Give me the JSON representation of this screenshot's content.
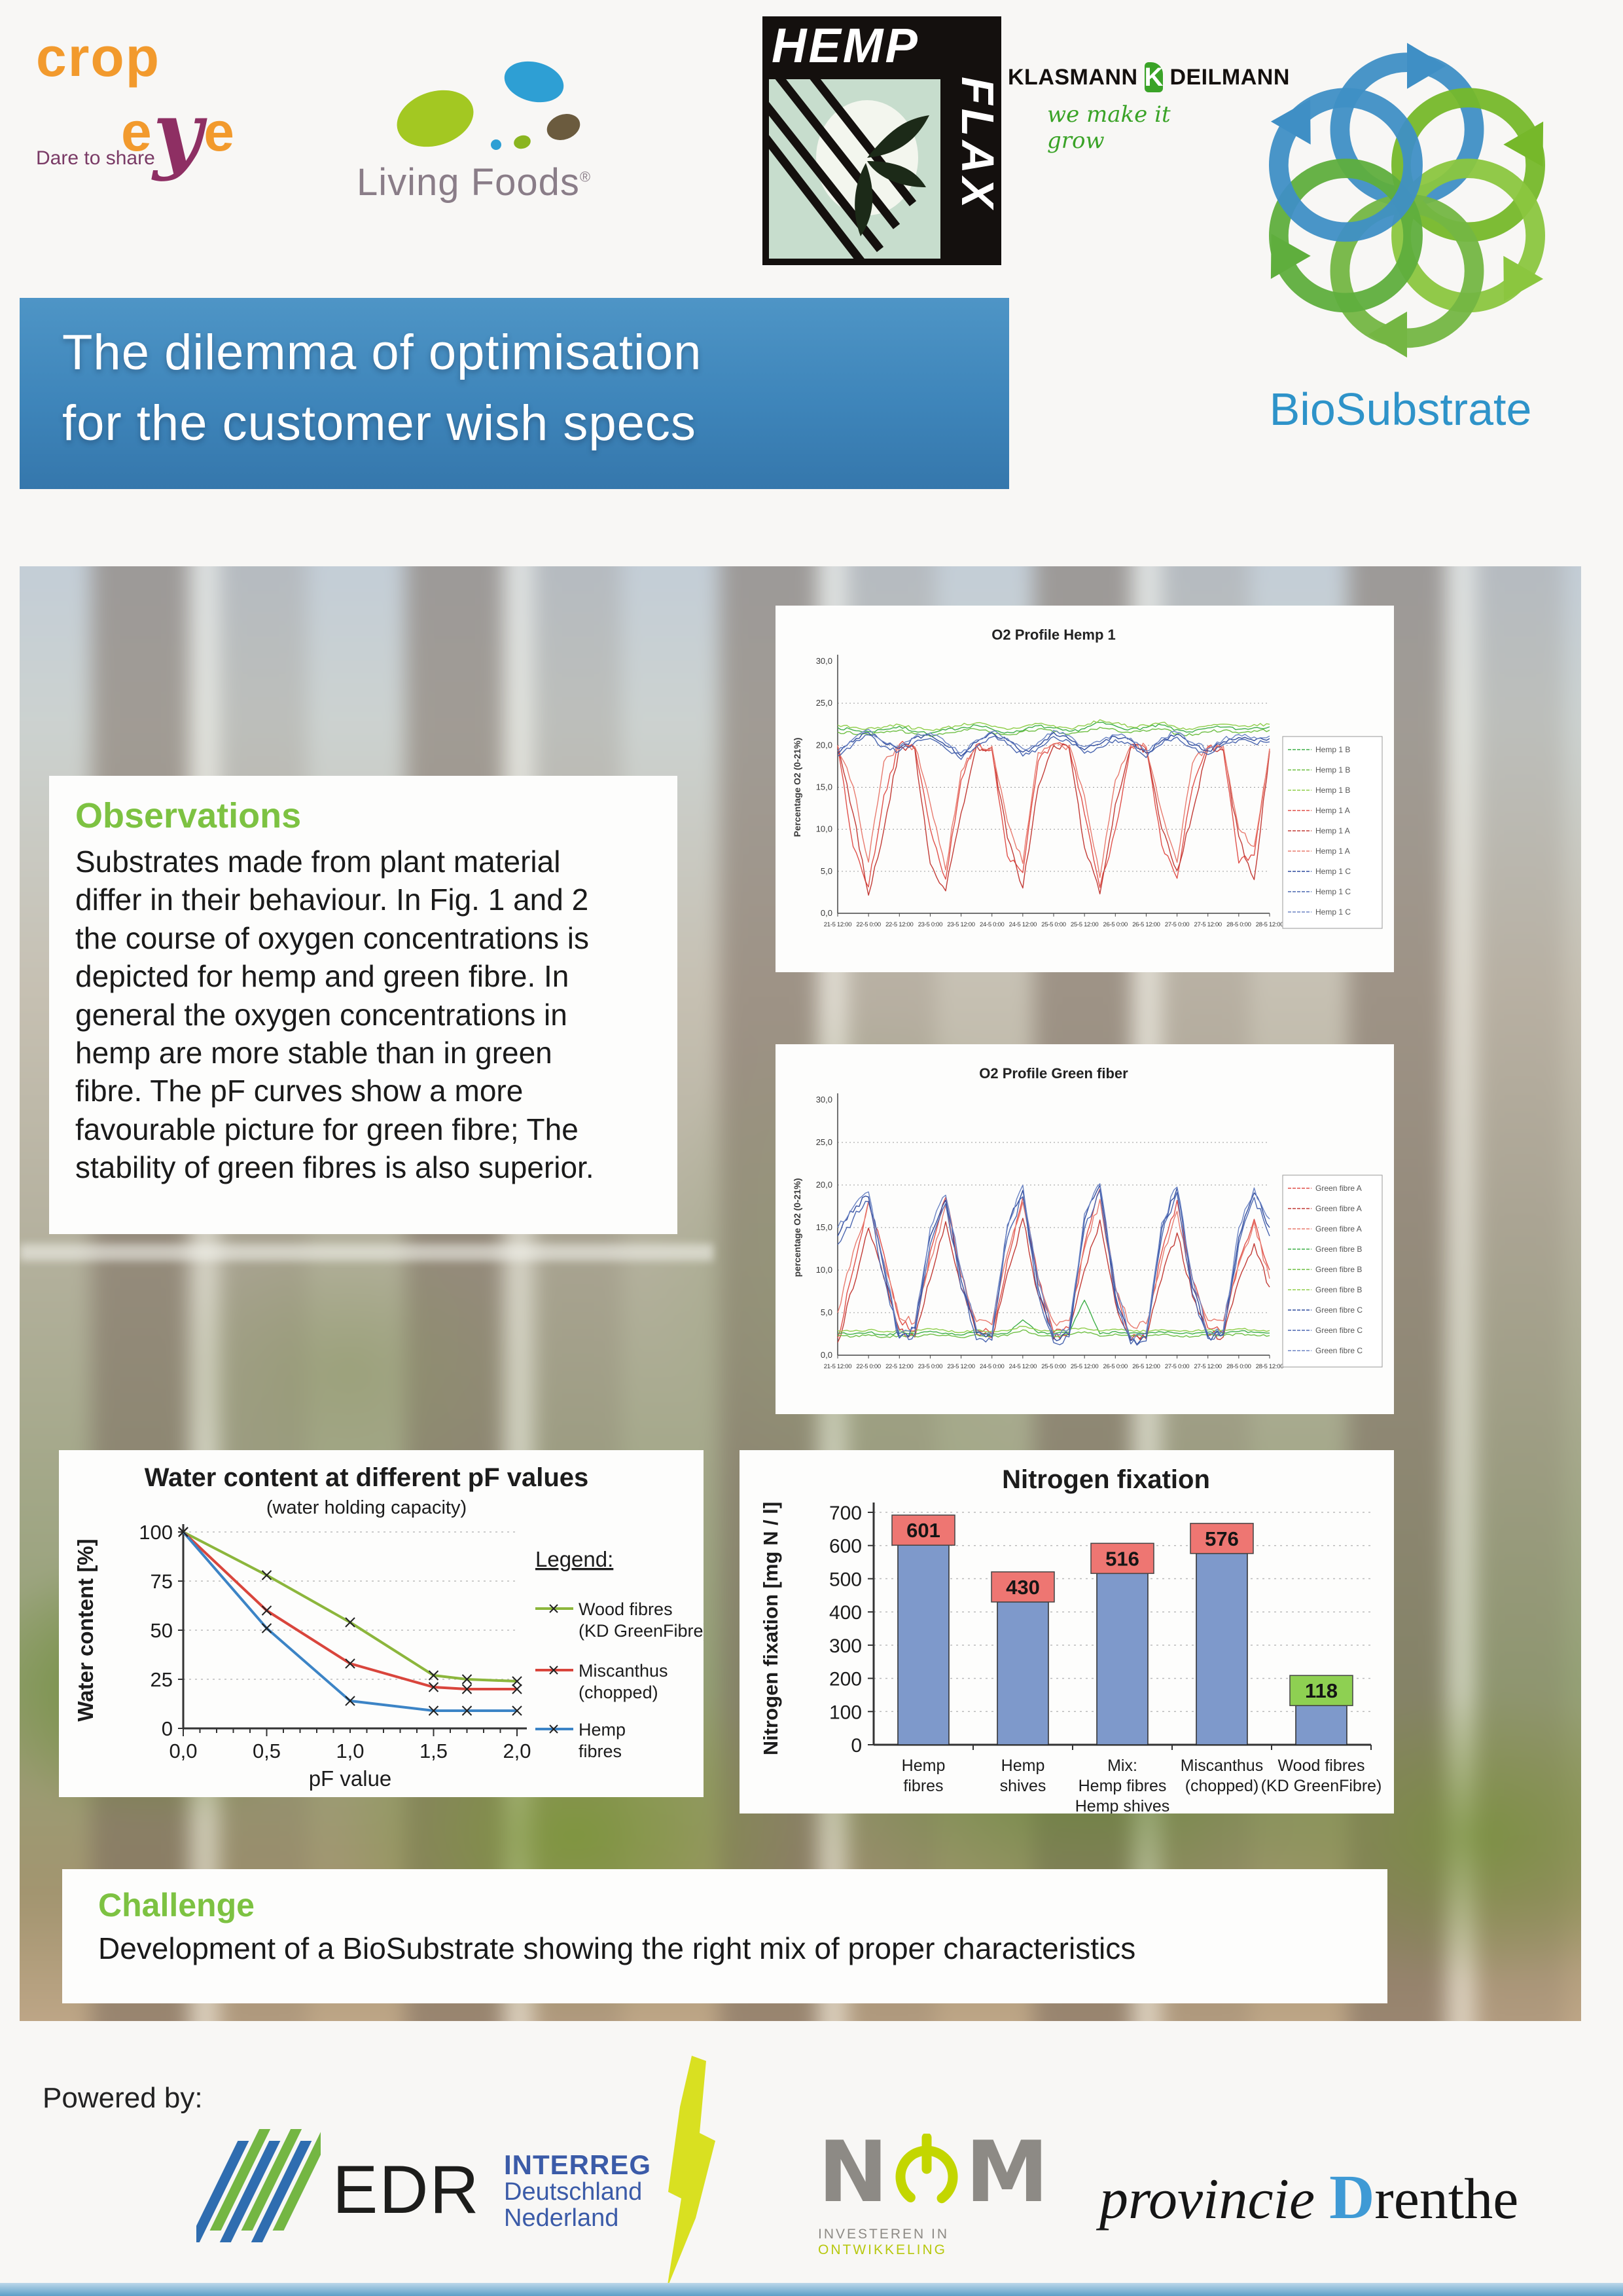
{
  "colors": {
    "banner_blue": "#3e85ba",
    "heading_green": "#7dc242",
    "biosubstrate_blue": "#2e93c9",
    "bar_blue": "#7e99cb",
    "label_red": "#ee7672",
    "label_green": "#8ed052"
  },
  "header": {
    "logos": {
      "cropeye": {
        "tagline": "Dare to share",
        "word1": "crop",
        "e1": "e",
        "y": "y",
        "e2": "e"
      },
      "livingfoods": {
        "name": "Living Foods",
        "reg": "®"
      },
      "hempflax": {
        "line1": "HEMP",
        "line2": "FLAX"
      },
      "klasmann": {
        "left": "KLASMANN",
        "k": "K",
        "right": "DEILMANN",
        "tagline": "we make it grow"
      },
      "biosubstrate": {
        "name": "BioSubstrate"
      }
    },
    "banner": {
      "line1": "The dilemma of optimisation",
      "line2": "for the customer wish specs"
    }
  },
  "observations": {
    "heading": "Observations",
    "body": "Substrates made from plant material differ in their behaviour. In Fig. 1 and 2 the course of oxygen concentrations is depicted for hemp and green fibre. In general the oxygen concentrations in hemp are more stable than in green fibre. The pF curves show a more favourable picture for green fibre; The stability of green fibres is also superior."
  },
  "challenge": {
    "heading": "Challenge",
    "body": "Development of a BioSubstrate showing the right mix of proper characteristics"
  },
  "footer": {
    "powered_by": "Powered by:",
    "edr": "EDR",
    "interreg": {
      "line1": "INTERREG",
      "line2": "Deutschland",
      "line3": "Nederland"
    },
    "nom": {
      "n": "N",
      "m": "M",
      "tagline_gray": "INVESTEREN IN ",
      "tagline_green": "ONTWIKKELING"
    },
    "drenthe": {
      "word1": "provincie ",
      "d": "D",
      "rest": "renthe"
    }
  },
  "chart_data": [
    {
      "type": "line",
      "title": "O2 Profile Hemp 1",
      "ylabel": "Percentage O2 (0-21%)",
      "ylim": [
        0,
        30
      ],
      "ytick_step": 5,
      "yticklabels": [
        "0,0",
        "5,0",
        "10,0",
        "15,0",
        "20,0",
        "25,0",
        "30,0"
      ],
      "grid": true,
      "legend_position": "right",
      "xticklabels": [
        "21-5 12:00",
        "22-5 0:00",
        "22-5 12:00",
        "23-5 0:00",
        "23-5 12:00",
        "24-5 0:00",
        "24-5 12:00",
        "25-5 0:00",
        "25-5 12:00",
        "26-5 0:00",
        "26-5 12:00",
        "27-5 0:00",
        "27-5 12:00",
        "28-5 0:00",
        "28-5 12:00"
      ],
      "series": [
        {
          "name": "Hemp 1 B",
          "color": "#3faf49",
          "jitter": 0.18,
          "values": [
            22.1,
            21.8,
            21.6,
            21.9,
            22.2,
            21.7,
            21.4,
            21.8,
            22.1,
            22.4,
            21.9,
            21.5,
            21.8,
            22.3,
            22.0,
            21.6,
            22.0,
            22.7,
            22.3,
            21.9,
            22.1,
            22.4,
            21.8,
            21.6,
            22.0,
            22.2,
            21.9,
            22.1,
            22.2
          ]
        },
        {
          "name": "Hemp 1 B",
          "color": "#6fbf44",
          "jitter": 0.18,
          "values": [
            21.6,
            21.4,
            21.3,
            21.5,
            21.8,
            21.3,
            21.1,
            21.4,
            21.7,
            21.9,
            21.5,
            21.2,
            21.6,
            21.9,
            21.6,
            21.3,
            21.6,
            22.1,
            21.8,
            21.5,
            21.7,
            21.9,
            21.4,
            21.2,
            21.6,
            21.8,
            21.5,
            21.7,
            21.8
          ]
        },
        {
          "name": "Hemp 1 B",
          "color": "#8fce4a",
          "jitter": 0.18,
          "values": [
            22.4,
            22.1,
            22.0,
            22.2,
            22.5,
            22.0,
            21.8,
            22.1,
            22.4,
            22.7,
            22.2,
            21.9,
            22.2,
            22.6,
            22.3,
            22.0,
            22.3,
            23.0,
            22.6,
            22.2,
            22.4,
            22.7,
            22.1,
            21.9,
            22.3,
            22.5,
            22.2,
            22.4,
            22.5
          ]
        },
        {
          "name": "Hemp 1 A",
          "color": "#e0504a",
          "jitter": 0.45,
          "values": [
            19.9,
            8.0,
            3.2,
            14.0,
            20.1,
            19.8,
            10.0,
            4.1,
            16.0,
            20.0,
            19.5,
            7.0,
            5.0,
            18.0,
            20.0,
            19.8,
            12.0,
            3.0,
            10.0,
            20.0,
            19.6,
            8.0,
            4.2,
            15.0,
            19.8,
            19.5,
            6.0,
            7.0,
            19.5
          ]
        },
        {
          "name": "Hemp 1 A",
          "color": "#c23b36",
          "jitter": 0.45,
          "values": [
            19.8,
            12.0,
            2.1,
            10.0,
            19.8,
            19.5,
            6.0,
            2.6,
            12.0,
            19.8,
            19.6,
            9.0,
            3.1,
            15.0,
            19.9,
            19.7,
            8.0,
            2.2,
            13.0,
            19.8,
            19.5,
            10.0,
            5.1,
            12.0,
            19.6,
            19.4,
            9.0,
            4.0,
            19.3
          ]
        },
        {
          "name": "Hemp 1 A",
          "color": "#e87b6f",
          "jitter": 0.45,
          "values": [
            20.0,
            15.0,
            6.1,
            18.0,
            20.0,
            19.9,
            13.0,
            5.2,
            17.0,
            20.0,
            19.8,
            11.0,
            6.0,
            19.0,
            20.0,
            19.9,
            14.0,
            4.1,
            16.0,
            19.9,
            19.8,
            12.0,
            6.2,
            18.0,
            19.8,
            19.7,
            10.0,
            8.0,
            19.6
          ]
        },
        {
          "name": "Hemp 1 C",
          "color": "#2f4b9e",
          "jitter": 0.28,
          "values": [
            19.0,
            20.5,
            21.6,
            20.2,
            19.6,
            20.8,
            21.2,
            20.0,
            18.8,
            20.3,
            21.4,
            20.6,
            19.2,
            20.0,
            21.5,
            20.8,
            19.5,
            20.2,
            21.0,
            20.5,
            19.0,
            20.6,
            21.3,
            20.0,
            19.3,
            20.4,
            21.0,
            20.6,
            20.8
          ]
        },
        {
          "name": "Hemp 1 C",
          "color": "#4a66b0",
          "jitter": 0.28,
          "values": [
            18.7,
            20.1,
            21.2,
            19.8,
            19.2,
            20.4,
            20.8,
            19.6,
            18.4,
            19.9,
            21.0,
            20.2,
            18.8,
            19.6,
            21.1,
            20.4,
            19.1,
            19.8,
            20.6,
            20.1,
            18.6,
            20.2,
            20.9,
            19.6,
            18.9,
            20.0,
            20.6,
            20.2,
            20.4
          ]
        },
        {
          "name": "Hemp 1 C",
          "color": "#6b84c4",
          "jitter": 0.28,
          "values": [
            19.3,
            20.8,
            21.9,
            20.5,
            19.9,
            21.1,
            21.5,
            20.3,
            19.1,
            20.6,
            21.7,
            20.9,
            19.5,
            20.3,
            21.8,
            21.1,
            19.8,
            20.5,
            21.3,
            20.8,
            19.3,
            20.9,
            21.6,
            20.3,
            19.6,
            20.7,
            21.3,
            20.9,
            21.1
          ]
        }
      ]
    },
    {
      "type": "line",
      "title": "O2 Profile Green fiber",
      "ylabel": "percentage O2 (0-21%)",
      "ylim": [
        0,
        30
      ],
      "ytick_step": 5,
      "yticklabels": [
        "0,0",
        "5,0",
        "10,0",
        "15,0",
        "20,0",
        "25,0",
        "30,0"
      ],
      "grid": true,
      "legend_position": "right",
      "xticklabels": [
        "21-5 12:00",
        "22-5 0:00",
        "22-5 12:00",
        "23-5 0:00",
        "23-5 12:00",
        "24-5 0:00",
        "24-5 12:00",
        "25-5 0:00",
        "25-5 12:00",
        "26-5 0:00",
        "26-5 12:00",
        "27-5 0:00",
        "27-5 12:00",
        "28-5 0:00",
        "28-5 12:00"
      ],
      "series": [
        {
          "name": "Green fibre A",
          "color": "#e0504a",
          "jitter": 0.5,
          "values": [
            2.0,
            10.0,
            18.0,
            12.0,
            4.0,
            3.0,
            12.0,
            18.5,
            10.0,
            3.0,
            2.5,
            11.0,
            18.7,
            9.0,
            2.5,
            3.0,
            13.0,
            19.5,
            8.0,
            2.0,
            2.5,
            12.0,
            18.0,
            9.0,
            3.0,
            2.8,
            11.0,
            16.0,
            10.0
          ]
        },
        {
          "name": "Green fibre A",
          "color": "#c23b36",
          "jitter": 0.5,
          "values": [
            1.5,
            8.0,
            15.0,
            9.0,
            3.0,
            2.0,
            9.0,
            15.5,
            8.0,
            2.5,
            2.0,
            9.5,
            16.0,
            7.0,
            2.0,
            2.5,
            10.0,
            15.8,
            6.0,
            1.8,
            2.0,
            9.0,
            14.5,
            7.0,
            2.5,
            2.2,
            9.0,
            13.0,
            8.0
          ]
        },
        {
          "name": "Green fibre A",
          "color": "#e87b6f",
          "jitter": 0.5,
          "values": [
            5.0,
            12.0,
            17.8,
            11.0,
            4.5,
            4.0,
            11.0,
            17.5,
            9.5,
            4.0,
            3.5,
            12.0,
            18.0,
            8.5,
            3.8,
            4.0,
            12.5,
            18.2,
            7.5,
            3.5,
            3.8,
            11.0,
            17.0,
            8.0,
            4.0,
            4.0,
            10.5,
            15.5,
            9.0
          ]
        },
        {
          "name": "Green fibre B",
          "color": "#3faf49",
          "jitter": 0.12,
          "values": [
            2.6,
            2.5,
            2.7,
            2.4,
            2.6,
            2.5,
            2.8,
            2.6,
            2.4,
            2.7,
            2.5,
            2.6,
            4.2,
            2.6,
            2.5,
            2.7,
            6.5,
            2.5,
            2.8,
            2.6,
            2.5,
            2.7,
            2.6,
            2.5,
            2.7,
            2.6,
            2.8,
            2.7,
            2.6
          ]
        },
        {
          "name": "Green fibre B",
          "color": "#6fbf44",
          "jitter": 0.12,
          "values": [
            2.3,
            2.2,
            2.4,
            2.1,
            2.3,
            2.2,
            2.5,
            2.3,
            2.1,
            2.4,
            2.2,
            2.3,
            3.0,
            2.3,
            2.2,
            2.4,
            2.8,
            2.2,
            2.5,
            2.3,
            2.2,
            2.4,
            2.3,
            2.2,
            2.4,
            2.3,
            2.5,
            2.4,
            2.3
          ]
        },
        {
          "name": "Green fibre B",
          "color": "#8fce4a",
          "jitter": 0.12,
          "values": [
            2.9,
            2.8,
            3.0,
            2.7,
            2.9,
            2.8,
            3.1,
            2.9,
            2.7,
            3.0,
            2.8,
            2.9,
            3.4,
            2.9,
            2.8,
            3.0,
            3.2,
            2.8,
            3.1,
            2.9,
            2.8,
            3.0,
            2.9,
            2.8,
            3.0,
            2.9,
            3.1,
            3.0,
            2.9
          ]
        },
        {
          "name": "Green fibre C",
          "color": "#2f4b9e",
          "jitter": 0.55,
          "values": [
            14.0,
            17.0,
            18.8,
            10.0,
            2.0,
            3.0,
            14.0,
            18.3,
            9.0,
            2.5,
            2.0,
            15.0,
            19.4,
            8.0,
            2.0,
            2.5,
            16.0,
            20.1,
            7.0,
            1.5,
            2.0,
            15.0,
            19.6,
            8.0,
            2.2,
            2.5,
            14.0,
            19.2,
            15.0
          ]
        },
        {
          "name": "Green fibre C",
          "color": "#4a66b0",
          "jitter": 0.55,
          "values": [
            13.0,
            16.0,
            18.0,
            9.0,
            1.8,
            2.5,
            13.0,
            17.8,
            8.0,
            2.0,
            1.8,
            14.0,
            18.8,
            7.0,
            1.6,
            2.0,
            15.0,
            19.5,
            6.5,
            1.3,
            1.8,
            14.0,
            19.0,
            7.0,
            2.0,
            2.2,
            13.0,
            18.5,
            14.0
          ]
        },
        {
          "name": "Green fibre C",
          "color": "#6b84c4",
          "jitter": 0.55,
          "values": [
            15.0,
            17.5,
            19.2,
            11.0,
            2.5,
            3.5,
            15.0,
            18.8,
            10.0,
            3.0,
            2.6,
            15.5,
            19.8,
            9.0,
            2.4,
            3.0,
            16.5,
            20.3,
            8.0,
            2.0,
            2.6,
            15.5,
            19.9,
            9.0,
            2.6,
            3.0,
            15.0,
            19.5,
            16.0
          ]
        }
      ]
    },
    {
      "type": "line",
      "title": "Water content at different pF values",
      "subtitle": "(water holding capacity)",
      "xlabel": "pF value",
      "ylabel": "Water content [%]",
      "xlim": [
        0,
        2
      ],
      "ylim": [
        0,
        100
      ],
      "xticklabels": [
        "0,0",
        "0,5",
        "1,0",
        "1,5",
        "2,0"
      ],
      "yticks": [
        0,
        25,
        50,
        75,
        100
      ],
      "grid": true,
      "legend_heading": "Legend:",
      "x": [
        0,
        0.5,
        1.0,
        1.5,
        1.7,
        2.0
      ],
      "series": [
        {
          "name": "Wood fibres (KD GreenFibre)",
          "label_lines": [
            "Wood fibres",
            "(KD GreenFibre)"
          ],
          "color": "#8cb63c",
          "values": [
            100,
            78,
            54,
            27,
            25,
            24
          ]
        },
        {
          "name": "Miscanthus (chopped)",
          "label_lines": [
            "Miscanthus",
            "(chopped)"
          ],
          "color": "#d9453c",
          "values": [
            100,
            60,
            33,
            21,
            20,
            20
          ]
        },
        {
          "name": "Hemp fibres",
          "label_lines": [
            "Hemp",
            "fibres"
          ],
          "color": "#3c84c6",
          "values": [
            100,
            51,
            14,
            9,
            9,
            9
          ]
        }
      ]
    },
    {
      "type": "bar",
      "title": "Nitrogen fixation",
      "ylabel": "Nitrogen fixation [mg N / l]",
      "ylim": [
        0,
        700
      ],
      "ytick_step": 100,
      "grid": true,
      "categories": [
        "Hemp fibres",
        "Hemp shives",
        "Mix: Hemp fibres Hemp shives",
        "Miscanthus (chopped)",
        "Wood fibres (KD GreenFibre)"
      ],
      "categories_lines": [
        [
          "Hemp",
          "fibres"
        ],
        [
          "Hemp",
          "shives"
        ],
        [
          "Mix:",
          "Hemp fibres",
          "Hemp shives"
        ],
        [
          "Miscanthus",
          "(chopped)"
        ],
        [
          "Wood fibres",
          "(KD GreenFibre)"
        ]
      ],
      "values": [
        601,
        430,
        516,
        576,
        118
      ],
      "bar_color": "#7e99cb",
      "label_colors": [
        "#ee7672",
        "#ee7672",
        "#ee7672",
        "#ee7672",
        "#8ed052"
      ]
    }
  ]
}
